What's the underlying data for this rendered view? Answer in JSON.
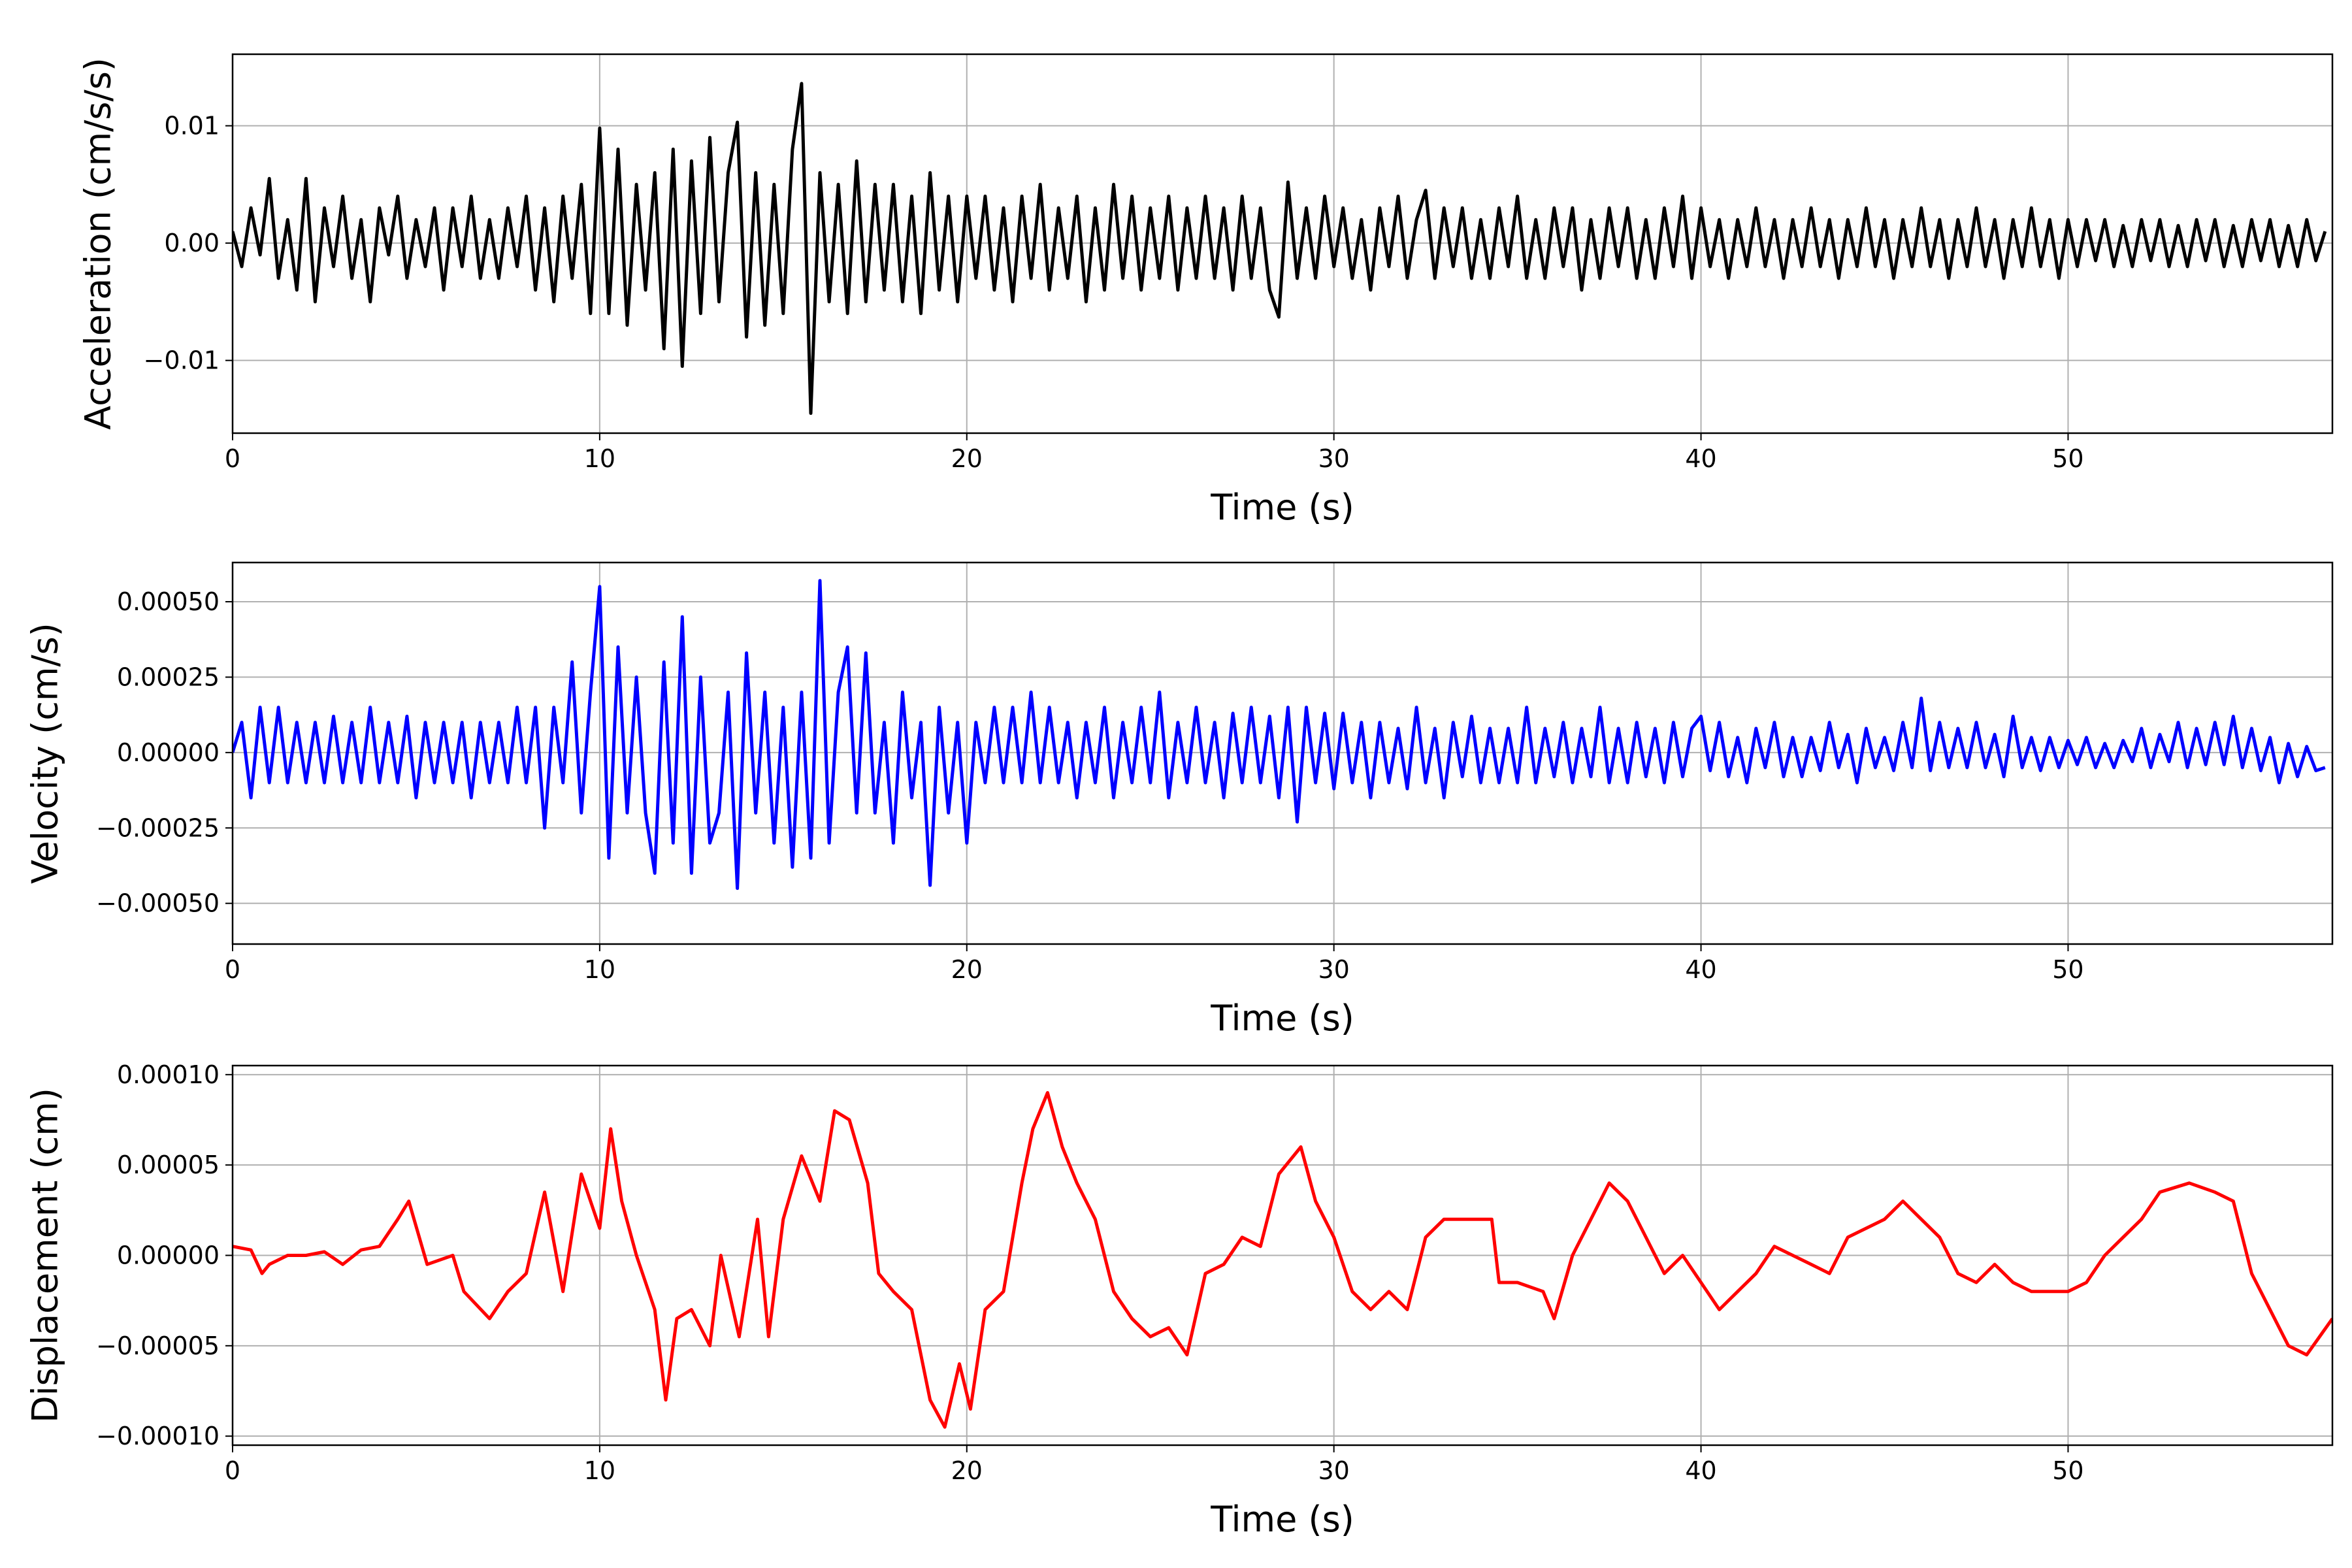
{
  "chart_data": [
    {
      "type": "line",
      "title": "",
      "xlabel": "Time (s)",
      "ylabel": "Acceleration (cm/s/s)",
      "color": "#000000",
      "xlim": [
        0,
        57.2
      ],
      "ylim": [
        -0.0162,
        0.0161
      ],
      "grid": true,
      "xticks": [
        0,
        10,
        20,
        30,
        40,
        50
      ],
      "xtick_labels": [
        "0",
        "10",
        "20",
        "30",
        "40",
        "50"
      ],
      "yticks": [
        0.01,
        0.0,
        -0.01
      ],
      "ytick_labels": [
        "0.01",
        "0.00",
        "−0.01"
      ],
      "x_start": 0,
      "x_step": 0.25,
      "values": [
        0.001,
        -0.002,
        0.003,
        -0.001,
        0.0055,
        -0.003,
        0.002,
        -0.004,
        0.0055,
        -0.005,
        0.003,
        -0.002,
        0.004,
        -0.003,
        0.002,
        -0.005,
        0.003,
        -0.001,
        0.004,
        -0.003,
        0.002,
        -0.002,
        0.003,
        -0.004,
        0.003,
        -0.002,
        0.004,
        -0.003,
        0.002,
        -0.003,
        0.003,
        -0.002,
        0.004,
        -0.004,
        0.003,
        -0.005,
        0.004,
        -0.003,
        0.005,
        -0.006,
        0.0098,
        -0.006,
        0.008,
        -0.007,
        0.005,
        -0.004,
        0.006,
        -0.009,
        0.008,
        -0.0105,
        0.007,
        -0.006,
        0.009,
        -0.005,
        0.006,
        0.0103,
        -0.008,
        0.006,
        -0.007,
        0.005,
        -0.006,
        0.008,
        0.0136,
        -0.0145,
        0.006,
        -0.005,
        0.005,
        -0.006,
        0.007,
        -0.005,
        0.005,
        -0.004,
        0.005,
        -0.005,
        0.004,
        -0.006,
        0.006,
        -0.004,
        0.004,
        -0.005,
        0.004,
        -0.003,
        0.004,
        -0.004,
        0.003,
        -0.005,
        0.004,
        -0.003,
        0.005,
        -0.004,
        0.003,
        -0.003,
        0.004,
        -0.005,
        0.003,
        -0.004,
        0.005,
        -0.003,
        0.004,
        -0.004,
        0.003,
        -0.003,
        0.004,
        -0.004,
        0.003,
        -0.003,
        0.004,
        -0.003,
        0.003,
        -0.004,
        0.004,
        -0.003,
        0.003,
        -0.004,
        -0.0063,
        0.0052,
        -0.003,
        0.003,
        -0.003,
        0.004,
        -0.002,
        0.003,
        -0.003,
        0.002,
        -0.004,
        0.003,
        -0.002,
        0.004,
        -0.003,
        0.002,
        0.0045,
        -0.003,
        0.003,
        -0.002,
        0.003,
        -0.003,
        0.002,
        -0.003,
        0.003,
        -0.002,
        0.004,
        -0.003,
        0.002,
        -0.003,
        0.003,
        -0.002,
        0.003,
        -0.004,
        0.002,
        -0.003,
        0.003,
        -0.002,
        0.003,
        -0.003,
        0.002,
        -0.003,
        0.003,
        -0.002,
        0.004,
        -0.003,
        0.003,
        -0.002,
        0.002,
        -0.003,
        0.002,
        -0.002,
        0.003,
        -0.002,
        0.002,
        -0.003,
        0.002,
        -0.002,
        0.003,
        -0.002,
        0.002,
        -0.003,
        0.002,
        -0.002,
        0.003,
        -0.002,
        0.002,
        -0.003,
        0.002,
        -0.002,
        0.003,
        -0.002,
        0.002,
        -0.003,
        0.002,
        -0.002,
        0.003,
        -0.002,
        0.002,
        -0.003,
        0.002,
        -0.002,
        0.003,
        -0.002,
        0.002,
        -0.003,
        0.002,
        -0.002,
        0.002,
        -0.0015,
        0.002,
        -0.002,
        0.0015,
        -0.002,
        0.002,
        -0.0015,
        0.002,
        -0.002,
        0.0015,
        -0.002,
        0.002,
        -0.0015,
        0.002,
        -0.002,
        0.0015,
        -0.002,
        0.002,
        -0.0015,
        0.002,
        -0.002,
        0.0015,
        -0.002,
        0.002,
        -0.0015,
        0.001
      ]
    },
    {
      "type": "line",
      "title": "",
      "xlabel": "Time (s)",
      "ylabel": "Velocity (cm/s)",
      "color": "#0000ff",
      "xlim": [
        0,
        57.2
      ],
      "ylim": [
        -0.000635,
        0.00063
      ],
      "grid": true,
      "xticks": [
        0,
        10,
        20,
        30,
        40,
        50
      ],
      "xtick_labels": [
        "0",
        "10",
        "20",
        "30",
        "40",
        "50"
      ],
      "yticks": [
        0.0005,
        0.00025,
        0.0,
        -0.00025,
        -0.0005
      ],
      "ytick_labels": [
        "0.00050",
        "0.00025",
        "0.00000",
        "−0.00025",
        "−0.00050"
      ],
      "x_start": 0,
      "x_step": 0.25,
      "values": [
        0,
        0.0001,
        -0.00015,
        0.00015,
        -0.0001,
        0.00015,
        -0.0001,
        0.0001,
        -0.0001,
        0.0001,
        -0.0001,
        0.00012,
        -0.0001,
        0.0001,
        -0.0001,
        0.00015,
        -0.0001,
        0.0001,
        -0.0001,
        0.00012,
        -0.00015,
        0.0001,
        -0.0001,
        0.0001,
        -0.0001,
        0.0001,
        -0.00015,
        0.0001,
        -0.0001,
        0.0001,
        -0.0001,
        0.00015,
        -0.0001,
        0.00015,
        -0.00025,
        0.00015,
        -0.0001,
        0.0003,
        -0.0002,
        0.0002,
        0.00055,
        -0.00035,
        0.00035,
        -0.0002,
        0.00025,
        -0.0002,
        -0.0004,
        0.0003,
        -0.0003,
        0.00045,
        -0.0004,
        0.00025,
        -0.0003,
        -0.0002,
        0.0002,
        -0.00045,
        0.00033,
        -0.0002,
        0.0002,
        -0.0003,
        0.00015,
        -0.00038,
        0.0002,
        -0.00035,
        0.00057,
        -0.0003,
        0.0002,
        0.00035,
        -0.0002,
        0.00033,
        -0.0002,
        0.0001,
        -0.0003,
        0.0002,
        -0.00015,
        0.0001,
        -0.00044,
        0.00015,
        -0.0002,
        0.0001,
        -0.0003,
        0.0001,
        -0.0001,
        0.00015,
        -0.0001,
        0.00015,
        -0.0001,
        0.0002,
        -0.0001,
        0.00015,
        -0.0001,
        0.0001,
        -0.00015,
        0.0001,
        -0.0001,
        0.00015,
        -0.00015,
        0.0001,
        -0.0001,
        0.00015,
        -0.0001,
        0.0002,
        -0.00015,
        0.0001,
        -0.0001,
        0.00015,
        -0.0001,
        0.0001,
        -0.00015,
        0.00013,
        -0.0001,
        0.00015,
        -0.0001,
        0.00012,
        -0.00015,
        0.00015,
        -0.00023,
        0.00015,
        -0.0001,
        0.00013,
        -0.00012,
        0.00013,
        -0.0001,
        0.0001,
        -0.00015,
        0.0001,
        -0.0001,
        8e-05,
        -0.00012,
        0.00015,
        -0.0001,
        8e-05,
        -0.00015,
        0.0001,
        -8e-05,
        0.00012,
        -0.0001,
        8e-05,
        -0.0001,
        8e-05,
        -0.0001,
        0.00015,
        -0.0001,
        8e-05,
        -8e-05,
        0.0001,
        -0.0001,
        8e-05,
        -8e-05,
        0.00015,
        -0.0001,
        8e-05,
        -0.0001,
        0.0001,
        -8e-05,
        8e-05,
        -0.0001,
        0.0001,
        -8e-05,
        8e-05,
        0.00012,
        -6e-05,
        0.0001,
        -8e-05,
        5e-05,
        -0.0001,
        8e-05,
        -5e-05,
        0.0001,
        -8e-05,
        5e-05,
        -8e-05,
        5e-05,
        -6e-05,
        0.0001,
        -5e-05,
        6e-05,
        -0.0001,
        8e-05,
        -5e-05,
        5e-05,
        -6e-05,
        0.0001,
        -5e-05,
        0.00018,
        -6e-05,
        0.0001,
        -5e-05,
        8e-05,
        -5e-05,
        0.0001,
        -5e-05,
        6e-05,
        -8e-05,
        0.00012,
        -5e-05,
        5e-05,
        -6e-05,
        5e-05,
        -5e-05,
        4e-05,
        -4e-05,
        5e-05,
        -5e-05,
        3e-05,
        -5e-05,
        4e-05,
        -3e-05,
        8e-05,
        -5e-05,
        6e-05,
        -3e-05,
        0.0001,
        -5e-05,
        8e-05,
        -4e-05,
        0.0001,
        -4e-05,
        0.00012,
        -5e-05,
        8e-05,
        -6e-05,
        5e-05,
        -0.0001,
        3e-05,
        -8e-05,
        2e-05,
        -6e-05,
        -5e-05
      ]
    },
    {
      "type": "line",
      "title": "",
      "xlabel": "Time (s)",
      "ylabel": "Displacement (cm)",
      "color": "#ff0000",
      "xlim": [
        0,
        57.2
      ],
      "ylim": [
        -0.000105,
        0.000105
      ],
      "grid": true,
      "xticks": [
        0,
        10,
        20,
        30,
        40,
        50
      ],
      "xtick_labels": [
        "0",
        "10",
        "20",
        "30",
        "40",
        "50"
      ],
      "yticks": [
        0.0001,
        5e-05,
        0.0,
        -5e-05,
        -0.0001
      ],
      "ytick_labels": [
        "0.00010",
        "0.00005",
        "0.00000",
        "−0.00005",
        "−0.00010"
      ],
      "points": [
        [
          0,
          5e-06
        ],
        [
          0.5,
          3e-06
        ],
        [
          0.8,
          -1e-05
        ],
        [
          1,
          -5e-06
        ],
        [
          1.5,
          0
        ],
        [
          2,
          0
        ],
        [
          2.5,
          2e-06
        ],
        [
          3,
          -5e-06
        ],
        [
          3.5,
          3e-06
        ],
        [
          4,
          5e-06
        ],
        [
          4.5,
          2e-05
        ],
        [
          4.8,
          3e-05
        ],
        [
          5.3,
          -5e-06
        ],
        [
          6,
          0
        ],
        [
          6.3,
          -2e-05
        ],
        [
          7,
          -3.5e-05
        ],
        [
          7.5,
          -2e-05
        ],
        [
          8,
          -1e-05
        ],
        [
          8.5,
          3.5e-05
        ],
        [
          9,
          -2e-05
        ],
        [
          9.5,
          4.5e-05
        ],
        [
          10,
          1.5e-05
        ],
        [
          10.3,
          7e-05
        ],
        [
          10.6,
          3e-05
        ],
        [
          11,
          0
        ],
        [
          11.5,
          -3e-05
        ],
        [
          11.8,
          -8e-05
        ],
        [
          12.1,
          -3.5e-05
        ],
        [
          12.5,
          -3e-05
        ],
        [
          13,
          -5e-05
        ],
        [
          13.3,
          0
        ],
        [
          13.8,
          -4.5e-05
        ],
        [
          14.3,
          2e-05
        ],
        [
          14.6,
          -4.5e-05
        ],
        [
          15,
          2e-05
        ],
        [
          15.5,
          5.5e-05
        ],
        [
          16,
          3e-05
        ],
        [
          16.4,
          8e-05
        ],
        [
          16.8,
          7.5e-05
        ],
        [
          17.3,
          4e-05
        ],
        [
          17.6,
          -1e-05
        ],
        [
          18,
          -2e-05
        ],
        [
          18.5,
          -3e-05
        ],
        [
          19,
          -8e-05
        ],
        [
          19.4,
          -9.5e-05
        ],
        [
          19.8,
          -6e-05
        ],
        [
          20.1,
          -8.5e-05
        ],
        [
          20.5,
          -3e-05
        ],
        [
          21,
          -2e-05
        ],
        [
          21.5,
          4e-05
        ],
        [
          21.8,
          7e-05
        ],
        [
          22.2,
          9e-05
        ],
        [
          22.6,
          6e-05
        ],
        [
          23,
          4e-05
        ],
        [
          23.5,
          2e-05
        ],
        [
          24,
          -2e-05
        ],
        [
          24.5,
          -3.5e-05
        ],
        [
          25,
          -4.5e-05
        ],
        [
          25.5,
          -4e-05
        ],
        [
          26,
          -5.5e-05
        ],
        [
          26.5,
          -1e-05
        ],
        [
          27,
          -5e-06
        ],
        [
          27.5,
          1e-05
        ],
        [
          28,
          5e-06
        ],
        [
          28.5,
          4.5e-05
        ],
        [
          29.1,
          6e-05
        ],
        [
          29.5,
          3e-05
        ],
        [
          30,
          1e-05
        ],
        [
          30.5,
          -2e-05
        ],
        [
          31,
          -3e-05
        ],
        [
          31.5,
          -2e-05
        ],
        [
          32,
          -3e-05
        ],
        [
          32.5,
          1e-05
        ],
        [
          33,
          2e-05
        ],
        [
          33.5,
          2e-05
        ],
        [
          34.3,
          2e-05
        ],
        [
          34.5,
          -1.5e-05
        ],
        [
          35,
          -1.5e-05
        ],
        [
          35.7,
          -2e-05
        ],
        [
          36,
          -3.5e-05
        ],
        [
          36.5,
          0
        ],
        [
          37,
          2e-05
        ],
        [
          37.5,
          4e-05
        ],
        [
          38,
          3e-05
        ],
        [
          38.5,
          1e-05
        ],
        [
          39,
          -1e-05
        ],
        [
          39.5,
          0
        ],
        [
          40,
          -1.5e-05
        ],
        [
          40.5,
          -3e-05
        ],
        [
          41,
          -2e-05
        ],
        [
          41.5,
          -1e-05
        ],
        [
          42,
          5e-06
        ],
        [
          42.5,
          0
        ],
        [
          43,
          -5e-06
        ],
        [
          43.5,
          -1e-05
        ],
        [
          44,
          1e-05
        ],
        [
          44.5,
          1.5e-05
        ],
        [
          45,
          2e-05
        ],
        [
          45.5,
          3e-05
        ],
        [
          46,
          2e-05
        ],
        [
          46.5,
          1e-05
        ],
        [
          47,
          -1e-05
        ],
        [
          47.5,
          -1.5e-05
        ],
        [
          48,
          -5e-06
        ],
        [
          48.5,
          -1.5e-05
        ],
        [
          49,
          -2e-05
        ],
        [
          49.5,
          -2e-05
        ],
        [
          50,
          -2e-05
        ],
        [
          50.5,
          -1.5e-05
        ],
        [
          51,
          0
        ],
        [
          51.5,
          1e-05
        ],
        [
          52,
          2e-05
        ],
        [
          52.5,
          3.5e-05
        ],
        [
          53.3,
          4e-05
        ],
        [
          54,
          3.5e-05
        ],
        [
          54.5,
          3e-05
        ],
        [
          55,
          -1e-05
        ],
        [
          55.5,
          -3e-05
        ],
        [
          56,
          -5e-05
        ],
        [
          56.5,
          -5.5e-05
        ],
        [
          57.2,
          -3.5e-05
        ]
      ]
    }
  ]
}
